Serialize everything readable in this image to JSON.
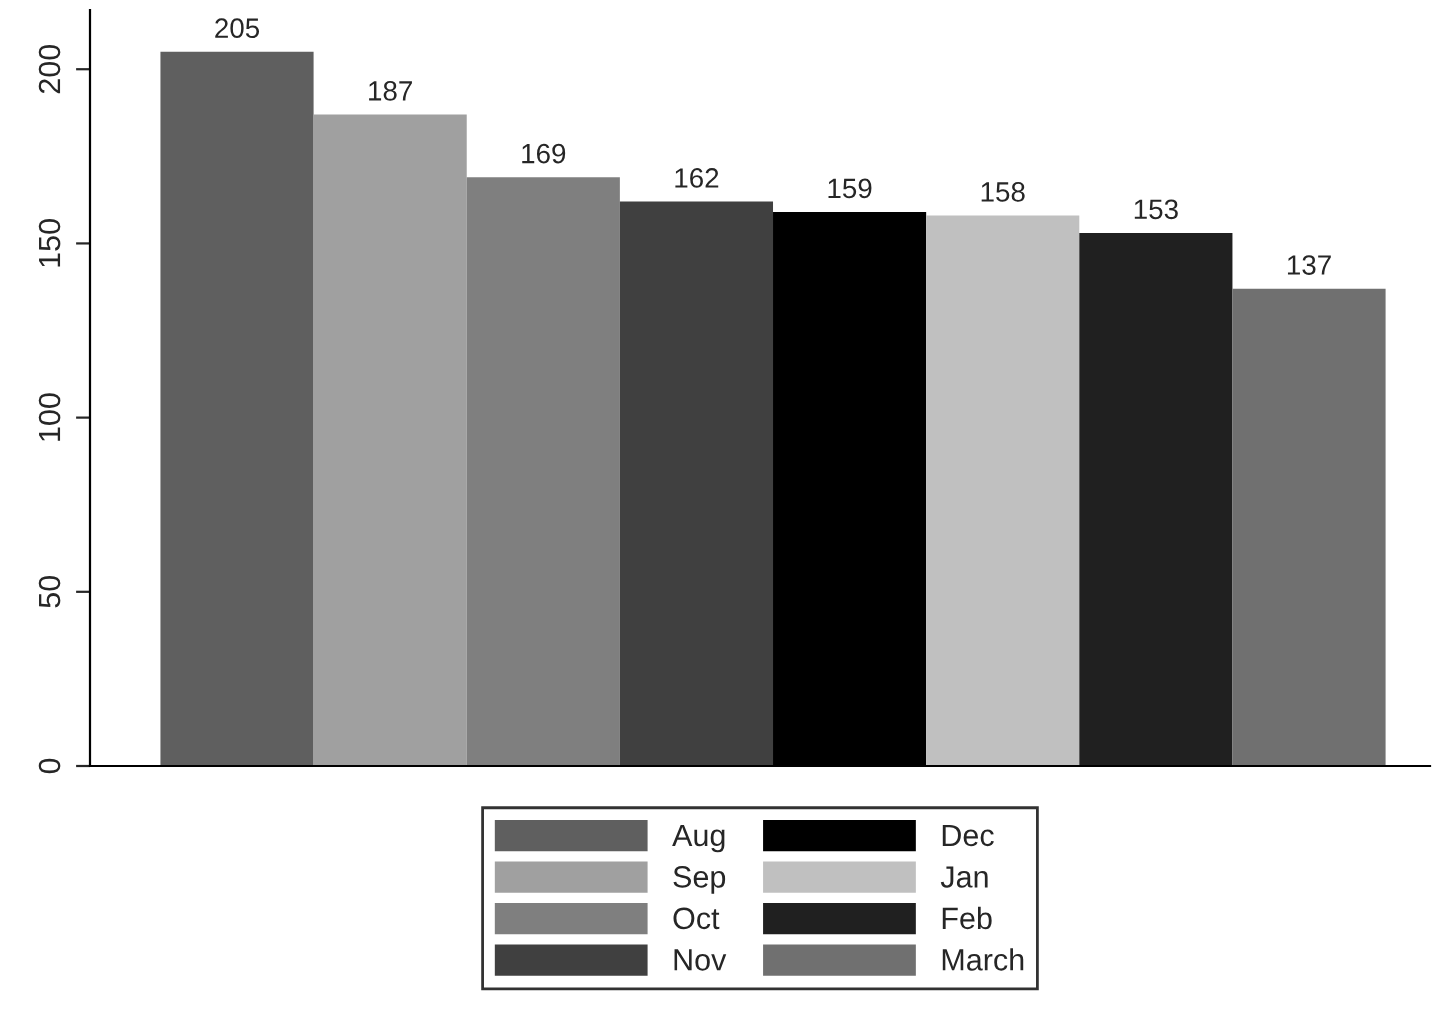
{
  "chart_data": {
    "type": "bar",
    "categories": [
      null,
      null,
      null,
      null,
      null,
      null,
      null,
      null
    ],
    "series": [
      {
        "name": "Aug",
        "color": "#5f5f5f",
        "values": [
          205,
          null,
          null,
          null,
          null,
          null,
          null,
          null
        ]
      },
      {
        "name": "Sep",
        "color": "#a0a0a0",
        "values": [
          null,
          187,
          null,
          null,
          null,
          null,
          null,
          null
        ]
      },
      {
        "name": "Oct",
        "color": "#7f7f7f",
        "values": [
          null,
          null,
          169,
          null,
          null,
          null,
          null,
          null
        ]
      },
      {
        "name": "Nov",
        "color": "#404040",
        "values": [
          null,
          null,
          null,
          162,
          null,
          null,
          null,
          null
        ]
      },
      {
        "name": "Dec",
        "color": "#000000",
        "values": [
          null,
          null,
          null,
          null,
          159,
          null,
          null,
          null
        ]
      },
      {
        "name": "Jan",
        "color": "#c0c0c0",
        "values": [
          null,
          null,
          null,
          null,
          null,
          158,
          null,
          null
        ]
      },
      {
        "name": "Feb",
        "color": "#202020",
        "values": [
          null,
          null,
          null,
          null,
          null,
          null,
          153,
          null
        ]
      },
      {
        "name": "March",
        "color": "#707070",
        "values": [
          null,
          null,
          null,
          null,
          null,
          null,
          null,
          137
        ]
      }
    ],
    "ylim": [
      0,
      217
    ],
    "yticks": [
      0,
      50,
      100,
      150,
      200
    ],
    "data_labels": true,
    "legend": "bottom",
    "grid": false,
    "tick_labels": "y"
  }
}
